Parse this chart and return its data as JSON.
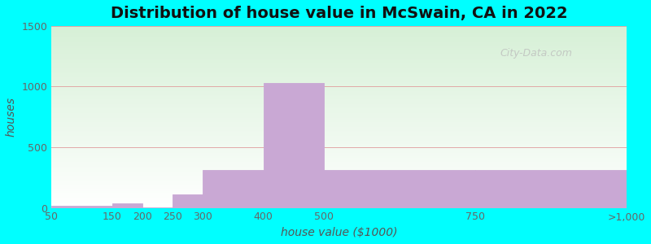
{
  "title": "Distribution of house value in McSwain, CA in 2022",
  "xlabel": "house value ($1000)",
  "ylabel": "houses",
  "background_color": "#00FFFF",
  "bar_color": "#c9a8d4",
  "bar_edge_color": "#b89ac4",
  "ylim": [
    0,
    1500
  ],
  "yticks": [
    0,
    500,
    1000,
    1500
  ],
  "tick_labels": [
    "50",
    "150",
    "200",
    "250",
    "300",
    "400",
    "500",
    "750",
    ">1,000"
  ],
  "tick_positions": [
    50,
    150,
    200,
    250,
    300,
    400,
    500,
    750,
    1000
  ],
  "bar_lefts": [
    50,
    150,
    200,
    250,
    300,
    400,
    500,
    750
  ],
  "bar_rights": [
    150,
    200,
    250,
    300,
    400,
    500,
    750,
    1000
  ],
  "bar_values": [
    15,
    40,
    5,
    110,
    310,
    1030,
    310,
    310
  ],
  "xlim": [
    50,
    1000
  ],
  "title_fontsize": 14,
  "axis_label_fontsize": 10,
  "tick_fontsize": 9,
  "watermark_text": "City-Data.com"
}
